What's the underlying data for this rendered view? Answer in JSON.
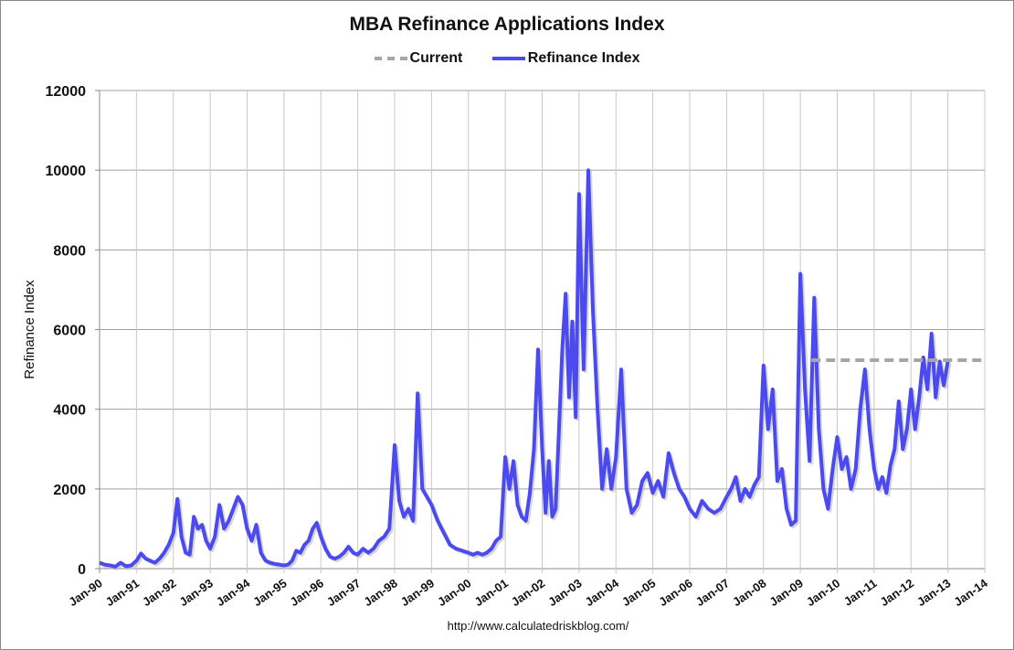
{
  "chart_data": {
    "type": "line",
    "title": "MBA Refinance Applications Index",
    "ylabel": "Refinance Index",
    "xlabel": "",
    "ylim": [
      0,
      12000
    ],
    "xlim": [
      1990,
      2014
    ],
    "yticks": [
      "0",
      "2000",
      "4000",
      "6000",
      "8000",
      "10000",
      "12000"
    ],
    "xticks": [
      "Jan-90",
      "Jan-91",
      "Jan-92",
      "Jan-93",
      "Jan-94",
      "Jan-95",
      "Jan-96",
      "Jan-97",
      "Jan-98",
      "Jan-99",
      "Jan-00",
      "Jan-01",
      "Jan-02",
      "Jan-03",
      "Jan-04",
      "Jan-05",
      "Jan-06",
      "Jan-07",
      "Jan-08",
      "Jan-09",
      "Jan-10",
      "Jan-11",
      "Jan-12",
      "Jan-13",
      "Jan-14"
    ],
    "grid": true,
    "legend_position": "top-center",
    "series": [
      {
        "name": "Current",
        "color": "#a6a6a6",
        "style": "dashed",
        "x": [
          2009.3,
          2014
        ],
        "values": [
          5230,
          5230
        ]
      },
      {
        "name": "Refinance Index",
        "color": "#4a4af0",
        "style": "solid",
        "values_by_year": {
          "1990": [
            150,
            100,
            80,
            50,
            150,
            60,
            80
          ],
          "1991": [
            200,
            380,
            250,
            200,
            150,
            250,
            400,
            600
          ],
          "1992": [
            900,
            1750,
            800,
            400,
            350,
            1300,
            1000,
            1100,
            700
          ],
          "1993": [
            500,
            800,
            1600,
            1000,
            1200,
            1500,
            1800,
            1600
          ],
          "1994": [
            1000,
            700,
            1100,
            400,
            200,
            150,
            120,
            100
          ],
          "1995": [
            80,
            100,
            200,
            450,
            400,
            600,
            700,
            1000,
            1150
          ],
          "1996": [
            800,
            500,
            300,
            250,
            300,
            400,
            550,
            400
          ],
          "1997": [
            350,
            500,
            400,
            500,
            700,
            800,
            1000
          ],
          "1998": [
            3100,
            1700,
            1300,
            1500,
            1200,
            4400,
            2000,
            1800
          ],
          "1999": [
            1600,
            1200,
            900,
            600,
            500,
            450
          ],
          "2000": [
            400,
            350,
            400,
            350,
            400,
            500,
            700,
            800
          ],
          "2001": [
            2800,
            2000,
            2700,
            1600,
            1300,
            1200,
            1900,
            3000,
            5500
          ],
          "2002": [
            3000,
            1400,
            2700,
            1300,
            1500,
            3500,
            5500,
            6900,
            4300,
            6200,
            3800
          ],
          "2003": [
            9400,
            5000,
            10000,
            6500,
            4000,
            2000,
            3000,
            2000
          ],
          "2004": [
            2800,
            5000,
            2000,
            1400,
            1600,
            2200,
            2400
          ],
          "2005": [
            1900,
            2200,
            1800,
            2900,
            2400,
            2000,
            1800
          ],
          "2006": [
            1500,
            1300,
            1700,
            1500,
            1400,
            1500
          ],
          "2007": [
            1800,
            2000,
            2300,
            1700,
            2000,
            1800,
            2100,
            2300
          ],
          "2008": [
            5100,
            3500,
            4500,
            2200,
            2500,
            1500,
            1100,
            1200
          ],
          "2009": [
            7400,
            4500,
            2700,
            6800,
            3500,
            2000,
            1500,
            2500
          ],
          "2010": [
            3300,
            2500,
            2800,
            2000,
            2500,
            4000,
            5000,
            3500
          ],
          "2011": [
            2500,
            2000,
            2300,
            1900,
            2600,
            3000,
            4200,
            3000,
            3500
          ],
          "2012": [
            4500,
            3500,
            4300,
            5300,
            4500,
            5900,
            4300,
            5200,
            4600
          ],
          "2013": [
            5200
          ]
        }
      }
    ],
    "source": "http://www.calculatedriskblog.com/"
  }
}
